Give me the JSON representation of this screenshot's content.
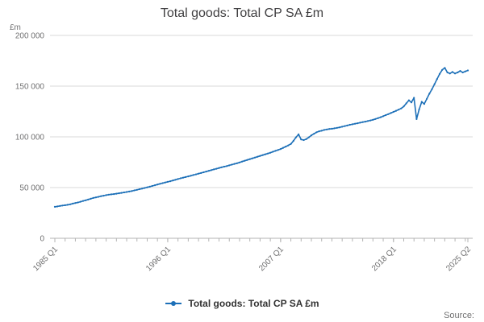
{
  "title": "Total goods: Total CP SA £m",
  "legend": {
    "label": "Total goods: Total CP SA £m"
  },
  "source": "Source:",
  "colors": {
    "line": "#1d70b8",
    "grid": "#d9d9d9",
    "axis": "#b3b3b3",
    "text": "#414042",
    "muted": "#707071"
  },
  "chart_data": {
    "type": "line",
    "title": "Total goods: Total CP SA £m",
    "xlabel": "",
    "ylabel": "£m",
    "ylim": [
      0,
      200000
    ],
    "grid": true,
    "legend_position": "bottom",
    "y_ticks": [
      0,
      50000,
      100000,
      150000,
      200000
    ],
    "y_tick_labels": [
      "0",
      "50 000",
      "100 000",
      "150 000",
      "200 000"
    ],
    "x_start": "1985 Q1",
    "x_end": "2025 Q2",
    "x_ticks": [
      {
        "index": 0,
        "label": "1985 Q1"
      },
      {
        "index": 44,
        "label": "1996 Q1"
      },
      {
        "index": 88,
        "label": "2007 Q1"
      },
      {
        "index": 132,
        "label": "2018 Q1"
      },
      {
        "index": 161,
        "label": "2025 Q2"
      }
    ],
    "series": [
      {
        "name": "Total goods: Total CP SA £m",
        "values": [
          31000,
          31400,
          31900,
          32300,
          32600,
          33000,
          33500,
          34200,
          34800,
          35300,
          36000,
          36800,
          37500,
          38200,
          39000,
          39800,
          40300,
          40900,
          41500,
          42000,
          42500,
          43000,
          43300,
          43600,
          44000,
          44400,
          44800,
          45200,
          45600,
          46100,
          46600,
          47200,
          47800,
          48400,
          49000,
          49600,
          50200,
          50900,
          51600,
          52300,
          53000,
          53700,
          54400,
          55000,
          55600,
          56300,
          57000,
          57700,
          58400,
          59100,
          59800,
          60400,
          61000,
          61700,
          62400,
          63000,
          63700,
          64400,
          65100,
          65800,
          66500,
          67200,
          67900,
          68600,
          69300,
          70000,
          70600,
          71200,
          71900,
          72600,
          73300,
          74000,
          74800,
          75600,
          76400,
          77200,
          78000,
          78800,
          79600,
          80400,
          81200,
          82000,
          82800,
          83600,
          84400,
          85300,
          86200,
          87100,
          88000,
          89200,
          90400,
          91600,
          93000,
          96000,
          99500,
          102500,
          97500,
          96800,
          97800,
          99500,
          101500,
          103000,
          104500,
          105500,
          106000,
          106800,
          107300,
          107800,
          108000,
          108400,
          108900,
          109400,
          110000,
          110600,
          111200,
          111900,
          112400,
          112900,
          113400,
          114000,
          114500,
          115000,
          115600,
          116200,
          116800,
          117600,
          118500,
          119400,
          120400,
          121400,
          122400,
          123500,
          124600,
          125700,
          126800,
          128000,
          130000,
          133000,
          136000,
          134000,
          138500,
          117500,
          127000,
          134500,
          132500,
          137500,
          142500,
          147000,
          152000,
          157000,
          162000,
          166000,
          168000,
          163500,
          162500,
          164000,
          162500,
          163500,
          165000,
          163500,
          164500,
          165500
        ]
      }
    ]
  }
}
